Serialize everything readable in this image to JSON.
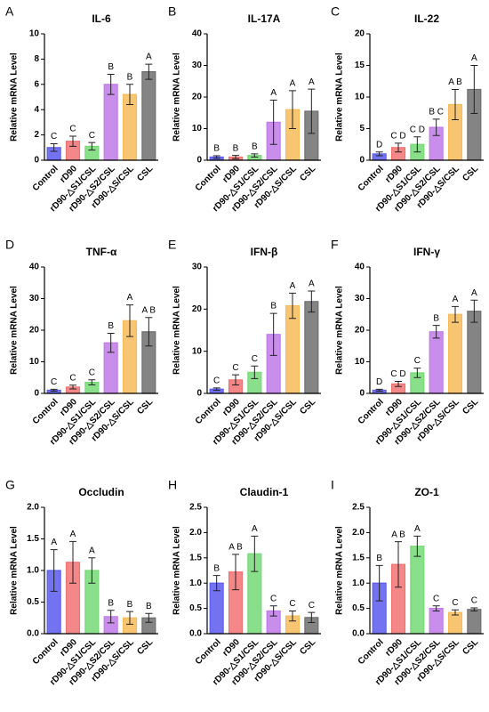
{
  "chart_data": [
    {
      "type": "bar",
      "panel": "A",
      "title": "IL-6",
      "ylabel": "Relative mRNA Level",
      "categories": [
        "Control",
        "rD90",
        "rD90-△S1/CSL",
        "rD90-△S2/CSL",
        "rD90-△S/CSL",
        "CSL"
      ],
      "values": [
        1.0,
        1.5,
        1.1,
        6.0,
        5.2,
        7.0
      ],
      "errors": [
        0.3,
        0.4,
        0.3,
        0.8,
        0.8,
        0.6
      ],
      "letters": [
        "C",
        "C",
        "C",
        "B",
        "B",
        "A"
      ],
      "colors": [
        "#5b5bf0",
        "#f27272",
        "#76d976",
        "#c07ae8",
        "#f7bb5a",
        "#6f6f6f"
      ],
      "ylim": [
        0,
        10
      ],
      "yticks": [
        0,
        2,
        4,
        6,
        8,
        10
      ]
    },
    {
      "type": "bar",
      "panel": "B",
      "title": "IL-17A",
      "ylabel": "Relative mRNA Level",
      "categories": [
        "Control",
        "rD90",
        "rD90-△S1/CSL",
        "rD90-△S2/CSL",
        "rD90-△S/CSL",
        "CSL"
      ],
      "values": [
        1.0,
        1.0,
        1.5,
        12,
        16,
        15.5
      ],
      "errors": [
        0.4,
        0.5,
        0.5,
        7,
        6,
        7
      ],
      "letters": [
        "B",
        "B",
        "B",
        "A",
        "A",
        "A"
      ],
      "colors": [
        "#5b5bf0",
        "#f27272",
        "#76d976",
        "#c07ae8",
        "#f7bb5a",
        "#6f6f6f"
      ],
      "ylim": [
        0,
        40
      ],
      "yticks": [
        0,
        10,
        20,
        30,
        40
      ]
    },
    {
      "type": "bar",
      "panel": "C",
      "title": "IL-22",
      "ylabel": "Relative mRNA Level",
      "categories": [
        "Control",
        "rD90",
        "rD90-△S1/CSL",
        "rD90-△S2/CSL",
        "rD90-△S/CSL",
        "CSL"
      ],
      "values": [
        1.0,
        2.0,
        2.5,
        5.2,
        8.8,
        11.2
      ],
      "errors": [
        0.3,
        0.7,
        1.2,
        1.3,
        2.4,
        3.8
      ],
      "letters": [
        "D",
        "C D",
        "C D",
        "B C",
        "A B",
        "A"
      ],
      "colors": [
        "#5b5bf0",
        "#f27272",
        "#76d976",
        "#c07ae8",
        "#f7bb5a",
        "#6f6f6f"
      ],
      "ylim": [
        0,
        20
      ],
      "yticks": [
        0,
        5,
        10,
        15,
        20
      ]
    },
    {
      "type": "bar",
      "panel": "D",
      "title": "TNF-α",
      "ylabel": "Relative mRNA Level",
      "categories": [
        "Control",
        "rD90",
        "rD90-△S1/CSL",
        "rD90-△S2/CSL",
        "rD90-△S/CSL",
        "CSL"
      ],
      "values": [
        1.0,
        2.0,
        3.5,
        16,
        23,
        19.5
      ],
      "errors": [
        0.3,
        0.6,
        0.8,
        3,
        5,
        4.5
      ],
      "letters": [
        "C",
        "C",
        "C",
        "B",
        "A",
        "A B"
      ],
      "colors": [
        "#5b5bf0",
        "#f27272",
        "#76d976",
        "#c07ae8",
        "#f7bb5a",
        "#6f6f6f"
      ],
      "ylim": [
        0,
        40
      ],
      "yticks": [
        0,
        10,
        20,
        30,
        40
      ]
    },
    {
      "type": "bar",
      "panel": "E",
      "title": "IFN-β",
      "ylabel": "Relative mRNA Level",
      "categories": [
        "Control",
        "rD90",
        "rD90-△S1/CSL",
        "rD90-△S2/CSL",
        "rD90-△S/CSL",
        "CSL"
      ],
      "values": [
        1.0,
        3.2,
        5.0,
        14,
        20.8,
        21.8
      ],
      "errors": [
        0.3,
        1.2,
        1.5,
        5,
        3,
        2.5
      ],
      "letters": [
        "C",
        "C",
        "C",
        "B",
        "A",
        "A"
      ],
      "colors": [
        "#5b5bf0",
        "#f27272",
        "#76d976",
        "#c07ae8",
        "#f7bb5a",
        "#6f6f6f"
      ],
      "ylim": [
        0,
        30
      ],
      "yticks": [
        0,
        10,
        20,
        30
      ]
    },
    {
      "type": "bar",
      "panel": "F",
      "title": "IFN-γ",
      "ylabel": "Relative mRNA Level",
      "categories": [
        "Control",
        "rD90",
        "rD90-△S1/CSL",
        "rD90-△S2/CSL",
        "rD90-△S/CSL",
        "CSL"
      ],
      "values": [
        1.0,
        3.0,
        6.5,
        19.5,
        25,
        26
      ],
      "errors": [
        0.3,
        0.8,
        1.5,
        2,
        2.5,
        3.5
      ],
      "letters": [
        "D",
        "C D",
        "C",
        "B",
        "A",
        "A"
      ],
      "colors": [
        "#5b5bf0",
        "#f27272",
        "#76d976",
        "#c07ae8",
        "#f7bb5a",
        "#6f6f6f"
      ],
      "ylim": [
        0,
        40
      ],
      "yticks": [
        0,
        10,
        20,
        30,
        40
      ]
    },
    {
      "type": "bar",
      "panel": "G",
      "title": "Occludin",
      "ylabel": "Relative mRNA Level",
      "categories": [
        "Control",
        "rD90",
        "rD90-△S1/CSL",
        "rD90-△S2/CSL",
        "rD90-△S/CSL",
        "CSL"
      ],
      "values": [
        1.0,
        1.13,
        1.0,
        0.27,
        0.25,
        0.25
      ],
      "errors": [
        0.33,
        0.33,
        0.2,
        0.1,
        0.1,
        0.07
      ],
      "letters": [
        "A",
        "A",
        "A",
        "B",
        "B",
        "B"
      ],
      "colors": [
        "#5b5bf0",
        "#f27272",
        "#76d976",
        "#c07ae8",
        "#f7bb5a",
        "#6f6f6f"
      ],
      "ylim": [
        0,
        2
      ],
      "yticks": [
        {
          "value": 0,
          "label": "0.0"
        },
        0.5,
        {
          "value": 1,
          "label": "1.0"
        },
        1.5,
        {
          "value": 2,
          "label": "2.0"
        }
      ]
    },
    {
      "type": "bar",
      "panel": "H",
      "title": "Claudin-1",
      "ylabel": "Relative mRNA Level",
      "categories": [
        "Control",
        "rD90",
        "rD90-△S1/CSL",
        "rD90-△S2/CSL",
        "rD90-△S/CSL",
        "CSL"
      ],
      "values": [
        1.0,
        1.22,
        1.58,
        0.45,
        0.35,
        0.32
      ],
      "errors": [
        0.15,
        0.35,
        0.35,
        0.1,
        0.1,
        0.1
      ],
      "letters": [
        "B",
        "A B",
        "A",
        "C",
        "C",
        "C"
      ],
      "colors": [
        "#5b5bf0",
        "#f27272",
        "#76d976",
        "#c07ae8",
        "#f7bb5a",
        "#6f6f6f"
      ],
      "ylim": [
        0,
        2.5
      ],
      "yticks": [
        {
          "value": 0,
          "label": "0.0"
        },
        0.5,
        {
          "value": 1,
          "label": "1.0"
        },
        1.5,
        {
          "value": 2,
          "label": "2.0"
        },
        2.5
      ]
    },
    {
      "type": "bar",
      "panel": "I",
      "title": "ZO-1",
      "ylabel": "Relative mRNA Level",
      "categories": [
        "Control",
        "rD90",
        "rD90-△S1/CSL",
        "rD90-△S2/CSL",
        "rD90-△S/CSL",
        "CSL"
      ],
      "values": [
        1.0,
        1.37,
        1.73,
        0.5,
        0.42,
        0.48
      ],
      "errors": [
        0.35,
        0.45,
        0.2,
        0.05,
        0.05,
        0.03
      ],
      "letters": [
        "B",
        "A B",
        "A",
        "C",
        "C",
        "C"
      ],
      "colors": [
        "#5b5bf0",
        "#f27272",
        "#76d976",
        "#c07ae8",
        "#f7bb5a",
        "#6f6f6f"
      ],
      "ylim": [
        0,
        2.5
      ],
      "yticks": [
        {
          "value": 0,
          "label": "0.0"
        },
        0.5,
        {
          "value": 1,
          "label": "1.0"
        },
        1.5,
        {
          "value": 2,
          "label": "2.0"
        },
        2.5
      ]
    }
  ]
}
